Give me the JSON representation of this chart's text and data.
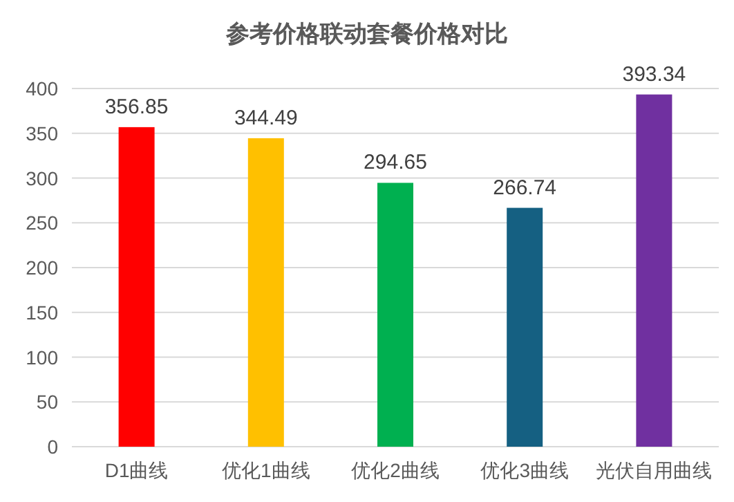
{
  "chart_data": {
    "type": "bar",
    "title": "参考价格联动套餐价格对比",
    "categories": [
      "D1曲线",
      "优化1曲线",
      "优化2曲线",
      "优化3曲线",
      "光伏自用曲线"
    ],
    "values": [
      356.85,
      344.49,
      294.65,
      266.74,
      393.34
    ],
    "colors": [
      "#ff0000",
      "#ffc000",
      "#00b050",
      "#156082",
      "#7030a0"
    ],
    "ylim": [
      0,
      400
    ],
    "yticks": [
      0,
      50,
      100,
      150,
      200,
      250,
      300,
      350,
      400
    ],
    "grid": "y",
    "data_labels": true
  }
}
